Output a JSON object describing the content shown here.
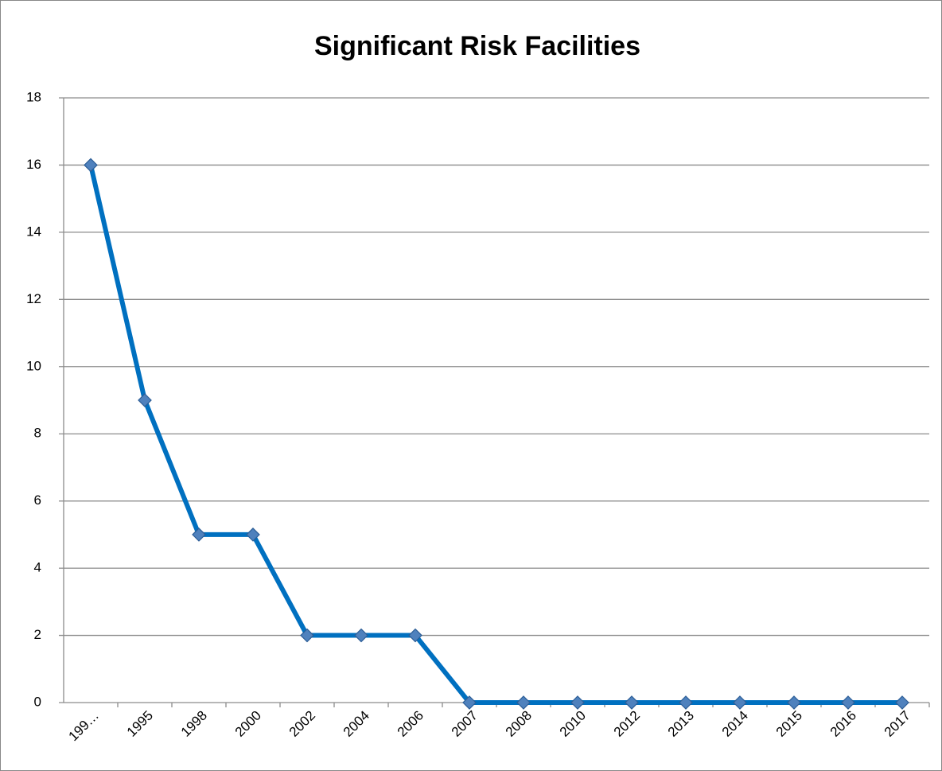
{
  "chart_data": {
    "type": "line",
    "title": "Significant Risk Facilities",
    "categories": [
      "199…",
      "1995",
      "1998",
      "2000",
      "2002",
      "2004",
      "2006",
      "2007",
      "2008",
      "2010",
      "2012",
      "2013",
      "2014",
      "2015",
      "2016",
      "2017"
    ],
    "series": [
      {
        "name": "Significant Risk Facilities",
        "color": "#0070c0",
        "values": [
          16,
          9,
          5,
          5,
          2,
          2,
          2,
          0,
          0,
          0,
          0,
          0,
          0,
          0,
          0,
          0
        ]
      }
    ],
    "ylim": [
      0,
      18
    ],
    "yticks": [
      0,
      2,
      4,
      6,
      8,
      10,
      12,
      14,
      16,
      18
    ],
    "grid": true
  }
}
